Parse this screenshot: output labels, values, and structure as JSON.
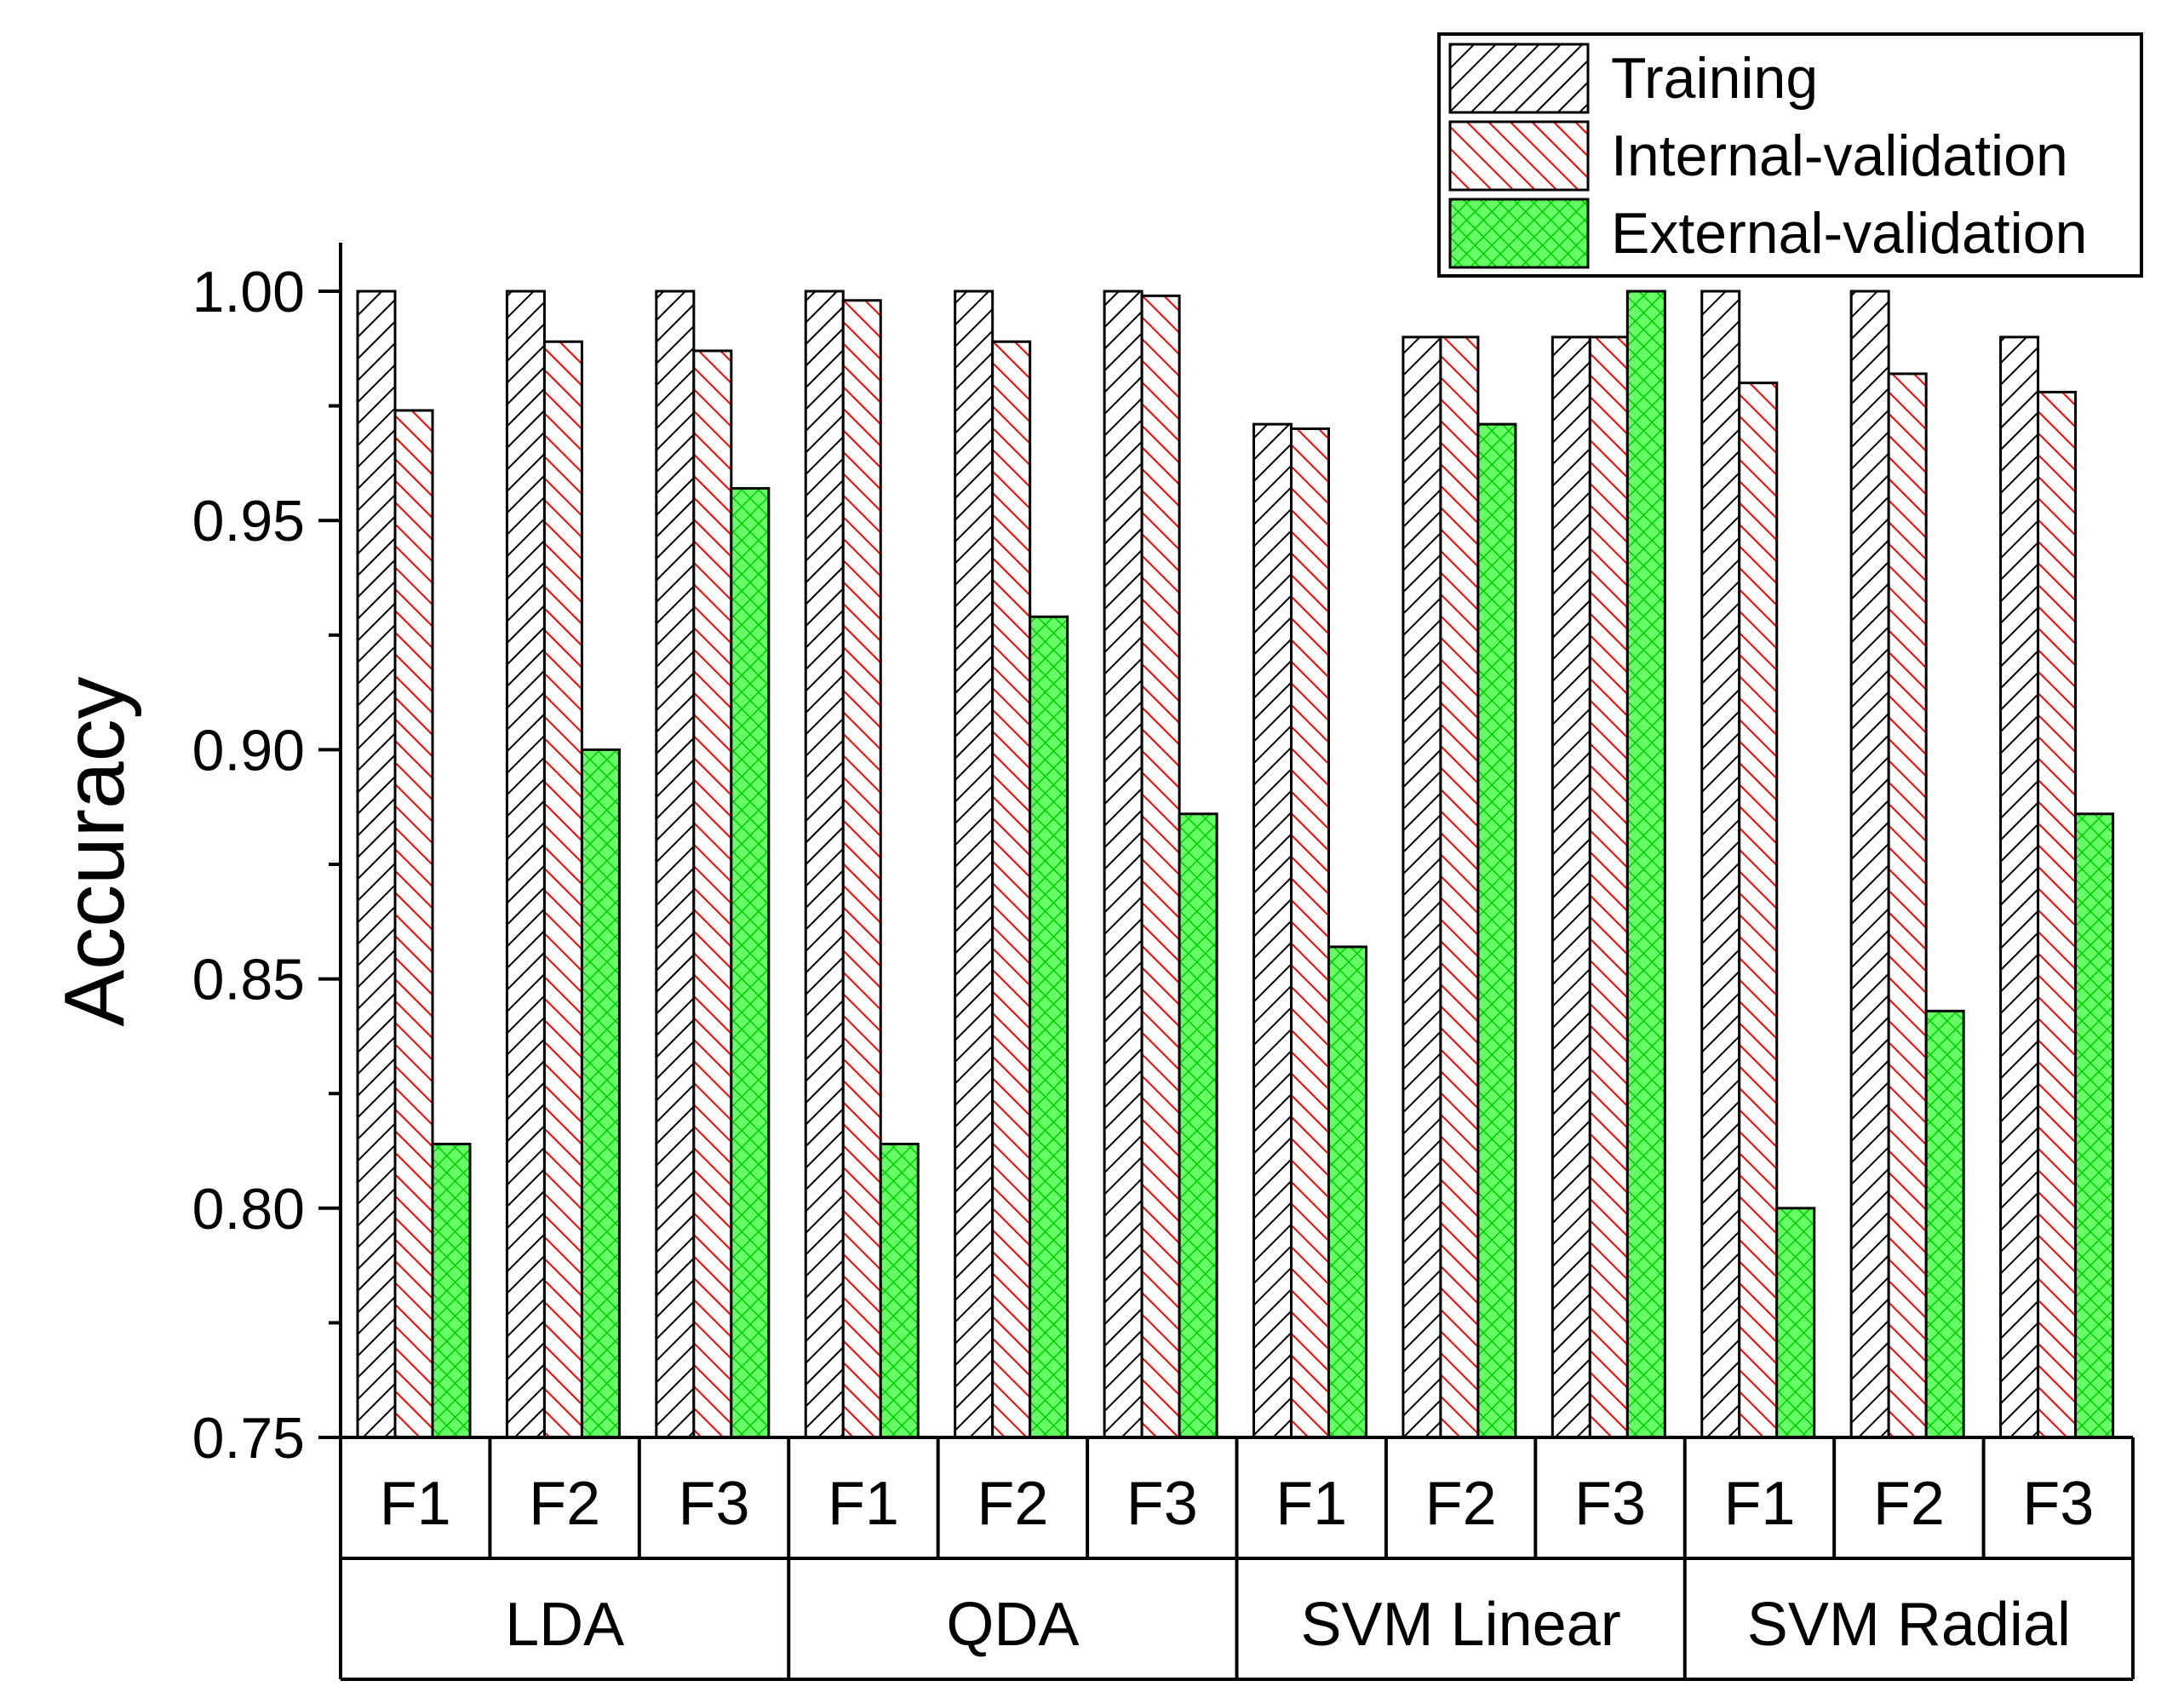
{
  "chart_data": {
    "type": "bar",
    "title": "",
    "xlabel": "",
    "ylabel": "Accuracy",
    "ylim": [
      0.75,
      1.0
    ],
    "yticks": [
      "0.75",
      "0.80",
      "0.85",
      "0.90",
      "0.95",
      "1.00"
    ],
    "groups": [
      {
        "name": "LDA",
        "categories": [
          "F1",
          "F2",
          "F3"
        ]
      },
      {
        "name": "QDA",
        "categories": [
          "F1",
          "F2",
          "F3"
        ]
      },
      {
        "name": "SVM Linear",
        "categories": [
          "F1",
          "F2",
          "F3"
        ]
      },
      {
        "name": "SVM Radial",
        "categories": [
          "F1",
          "F2",
          "F3"
        ]
      }
    ],
    "series": [
      {
        "name": "Training",
        "color": "#ffffff",
        "hatch_color": "#000000",
        "values": [
          1.0,
          1.0,
          1.0,
          1.0,
          1.0,
          1.0,
          0.971,
          0.99,
          0.99,
          1.0,
          1.0,
          0.99
        ]
      },
      {
        "name": "Internal-validation",
        "color": "#ffffff",
        "hatch_color": "#ff0000",
        "values": [
          0.974,
          0.989,
          0.987,
          0.998,
          0.989,
          0.999,
          0.97,
          0.99,
          0.99,
          0.98,
          0.982,
          0.978
        ]
      },
      {
        "name": "External-validation",
        "color": "#66ff66",
        "hatch_color": "#00cc00",
        "values": [
          0.814,
          0.9,
          0.957,
          0.814,
          0.929,
          0.886,
          0.857,
          0.971,
          1.0,
          0.8,
          0.843,
          0.886
        ]
      }
    ],
    "legend_position": "top-right"
  }
}
